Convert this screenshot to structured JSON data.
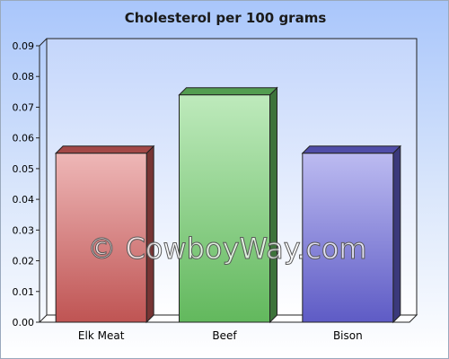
{
  "chart_data": {
    "type": "bar",
    "title": "Cholesterol per 100 grams",
    "categories": [
      "Elk Meat",
      "Beef",
      "Bison"
    ],
    "values": [
      0.055,
      0.074,
      0.055
    ],
    "bar_colors": [
      "#d9605e",
      "#6fd16a",
      "#6b67e0"
    ],
    "ylim": [
      0,
      0.09
    ],
    "yticks": [
      "0.00",
      "0.01",
      "0.02",
      "0.03",
      "0.04",
      "0.05",
      "0.06",
      "0.07",
      "0.08",
      "0.09"
    ],
    "xlabel": "",
    "ylabel": "",
    "grid": false,
    "legend": "none"
  },
  "watermark": "© CowboyWay.com"
}
